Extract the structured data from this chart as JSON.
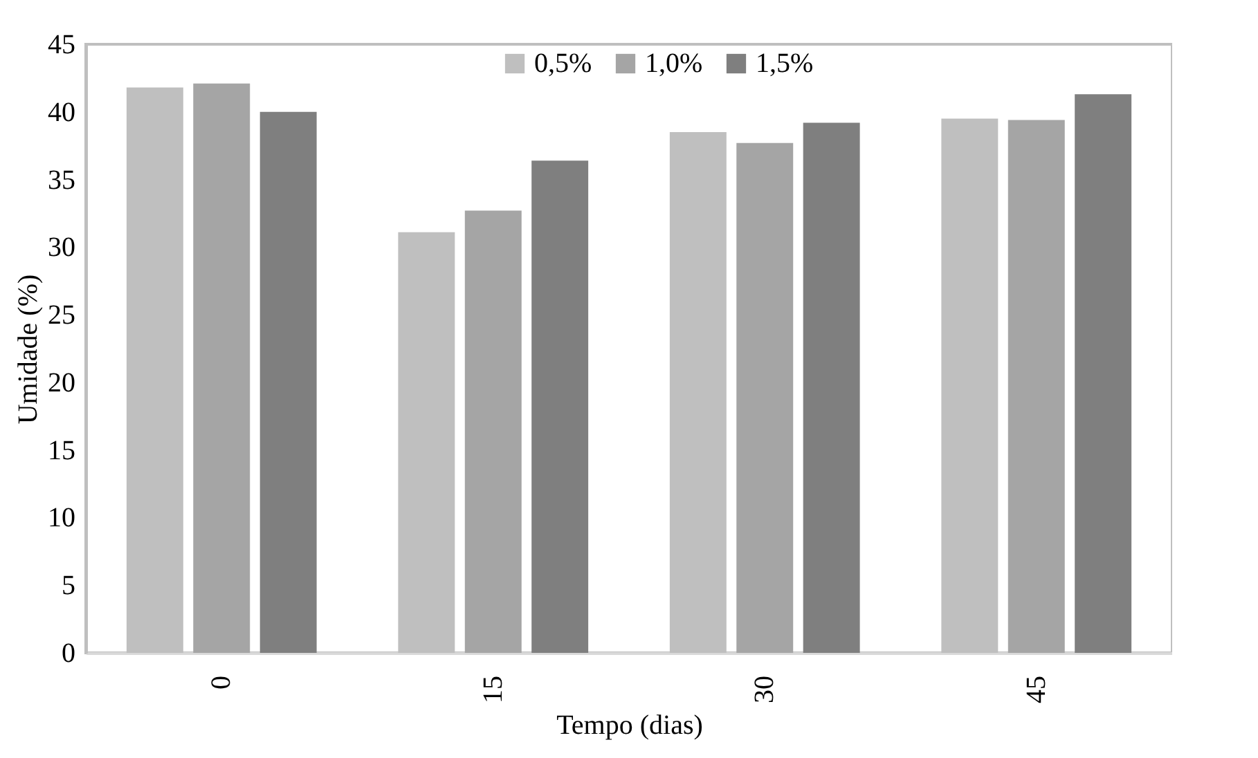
{
  "chart_data": {
    "type": "bar",
    "xlabel": "Tempo (dias)",
    "ylabel": "Umidade (%)",
    "categories": [
      "0",
      "15",
      "30",
      "45"
    ],
    "series": [
      {
        "name": "0,5%",
        "color": "#bfbfbf",
        "values": [
          41.8,
          31.1,
          38.5,
          39.5
        ]
      },
      {
        "name": "1,0%",
        "color": "#a5a5a5",
        "values": [
          42.1,
          32.7,
          37.7,
          39.4
        ]
      },
      {
        "name": "1,5%",
        "color": "#7f7f7f",
        "values": [
          40.0,
          36.4,
          39.2,
          41.3
        ]
      }
    ],
    "ylim": [
      0,
      45
    ],
    "yticks": [
      0,
      5,
      10,
      15,
      20,
      25,
      30,
      35,
      40,
      45
    ],
    "grid": false,
    "legend": "top"
  }
}
